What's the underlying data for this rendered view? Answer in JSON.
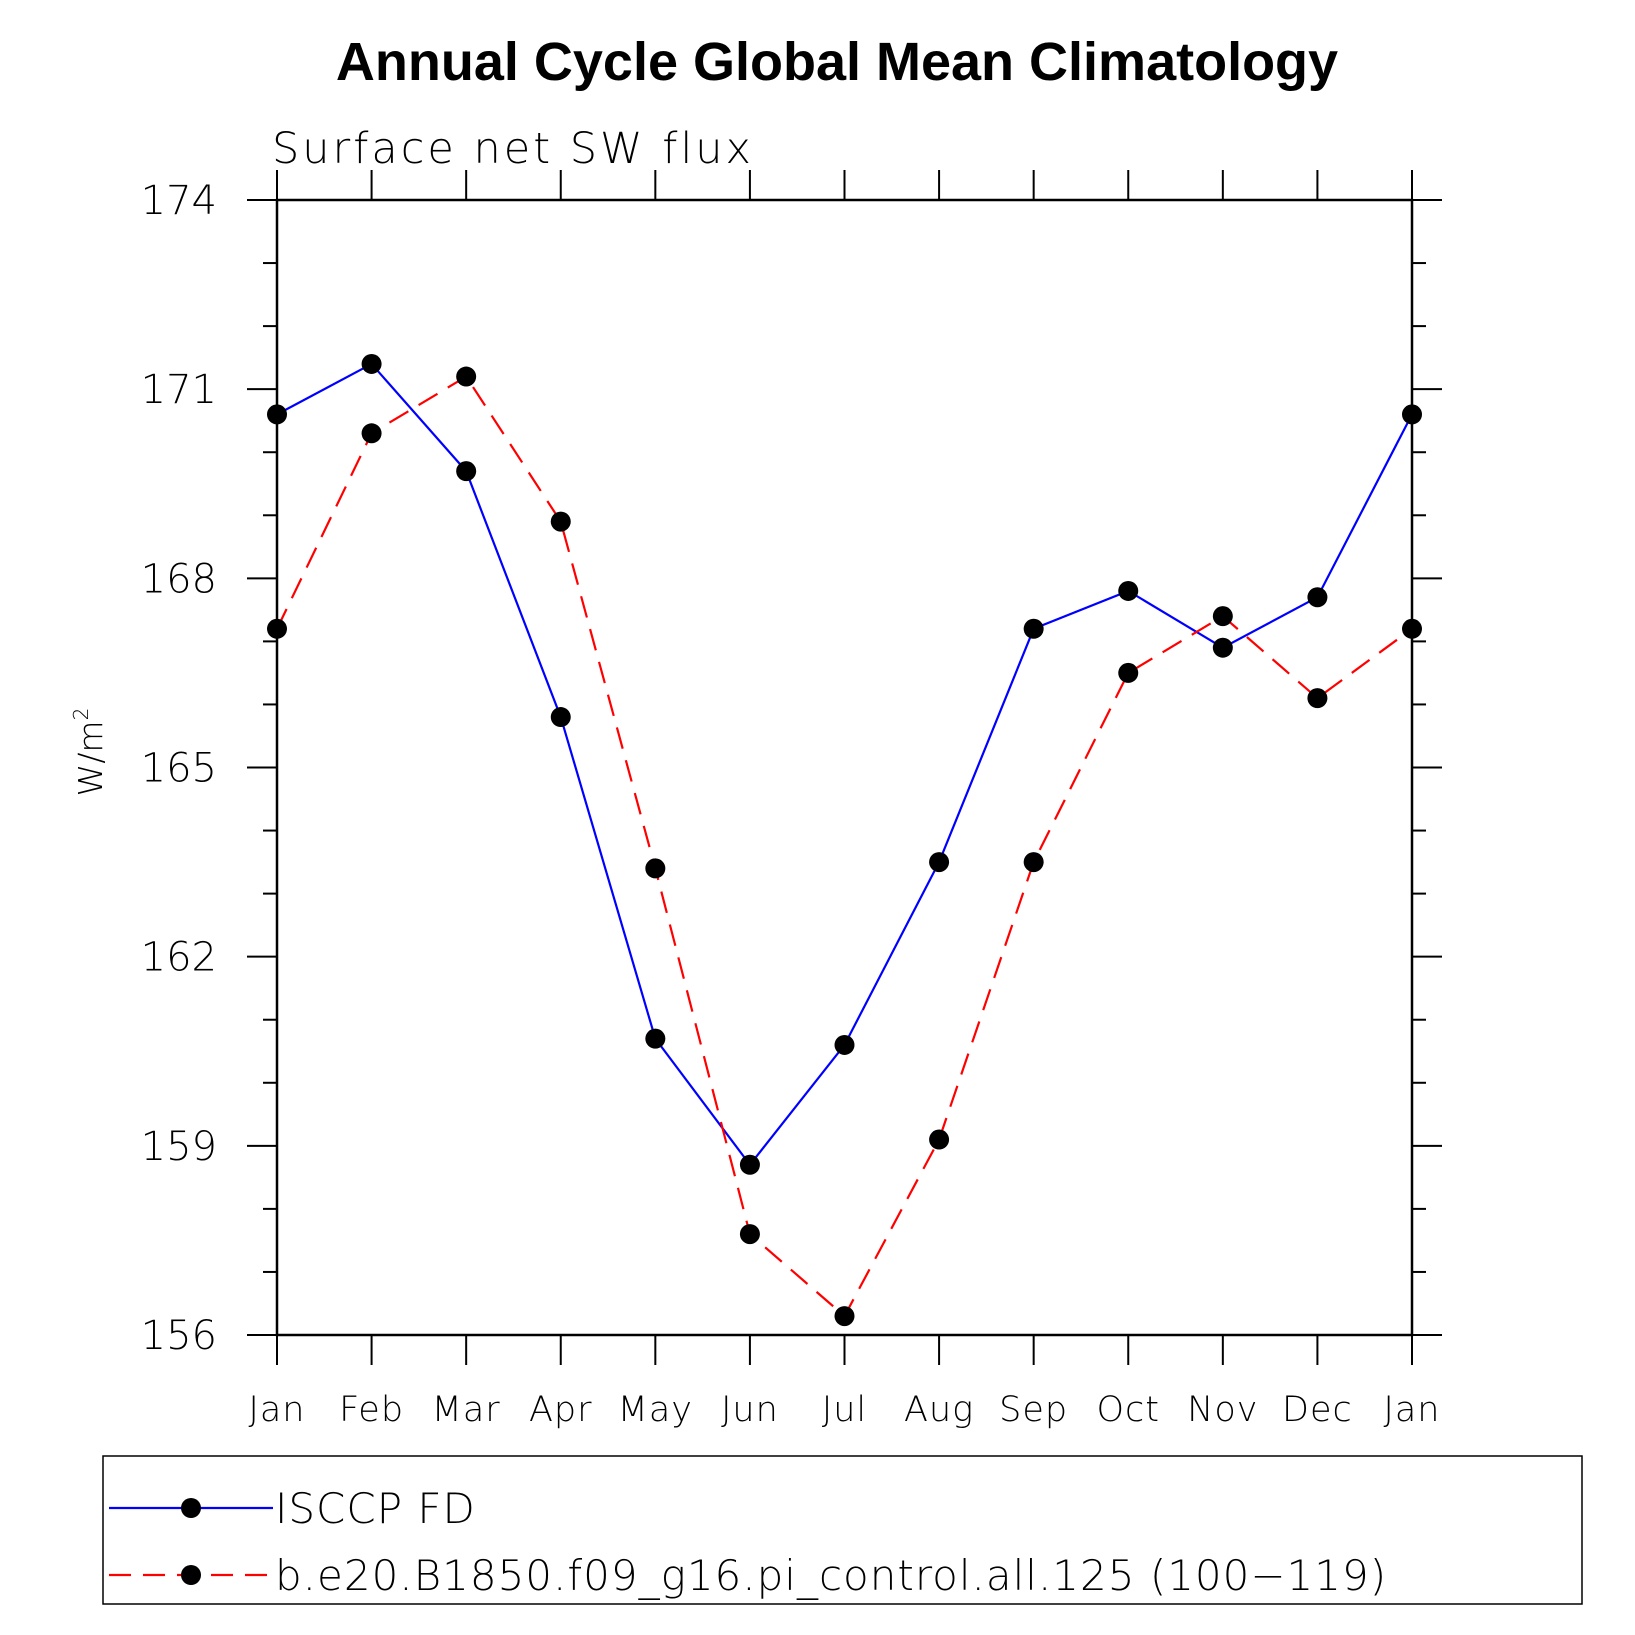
{
  "chart_data": {
    "type": "line",
    "title": "Annual Cycle Global Mean Climatology",
    "subtitle": "Surface net SW flux",
    "ylabel": "W/m",
    "ylabel_superscript": "2",
    "ylim": [
      156,
      174
    ],
    "yticks": [
      156,
      159,
      162,
      165,
      168,
      171,
      174
    ],
    "categories": [
      "Jan",
      "Feb",
      "Mar",
      "Apr",
      "May",
      "Jun",
      "Jul",
      "Aug",
      "Sep",
      "Oct",
      "Nov",
      "Dec",
      "Jan"
    ],
    "grid": false,
    "legend_position": "bottom",
    "series": [
      {
        "name": "ISCCP FD",
        "color": "#0000ff",
        "line_style": "solid",
        "marker": "filled-circle",
        "values": [
          170.6,
          171.4,
          169.7,
          165.8,
          160.7,
          158.7,
          160.6,
          163.5,
          167.2,
          167.8,
          166.9,
          167.7,
          170.6
        ]
      },
      {
        "name": "b.e20.B1850.f09_g16.pi_control.all.125 (100−119)",
        "color": "#ff0000",
        "line_style": "dashed",
        "marker": "filled-circle",
        "values": [
          167.2,
          170.3,
          171.2,
          168.9,
          163.4,
          157.6,
          156.3,
          159.1,
          163.5,
          166.5,
          167.4,
          166.1,
          167.2
        ]
      }
    ]
  }
}
